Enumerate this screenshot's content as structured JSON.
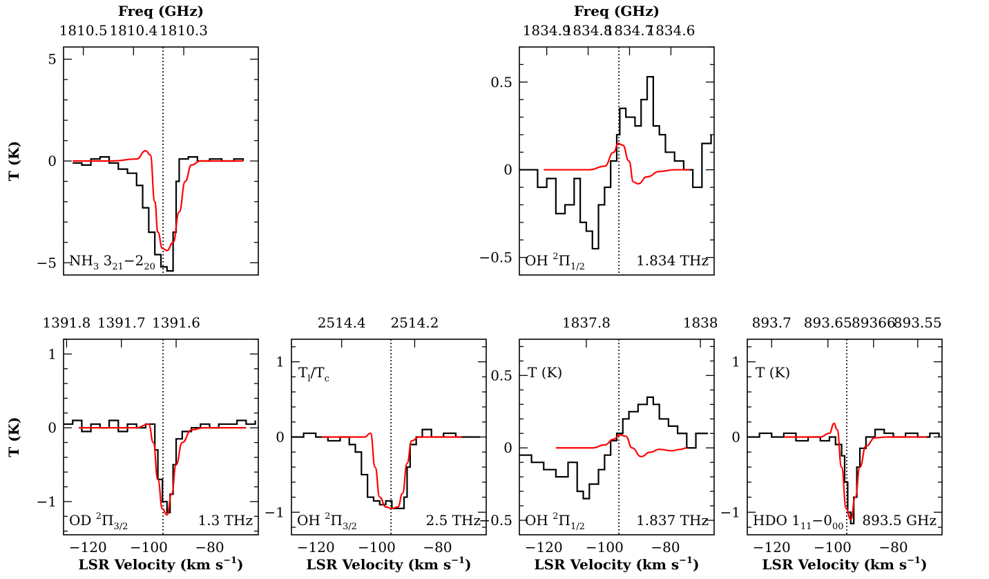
{
  "chart_data": [
    {
      "id": "nh3",
      "type": "line",
      "xlim": [
        -128,
        -64
      ],
      "ylim": [
        -5.6,
        5.6
      ],
      "xticks": [
        -120,
        -100,
        -80
      ],
      "xtick_labels": [
        "",
        "",
        ""
      ],
      "yticks": [
        -5,
        0,
        5
      ],
      "ytick_labels": [
        "−5",
        "0",
        "5"
      ],
      "ylabel": "T (K)",
      "xlabel": "",
      "top_axis": {
        "title": "Freq (GHz)",
        "ticks": [
          {
            "v": -121.5,
            "label": "1810.5"
          },
          {
            "v": -105,
            "label": "1810.4"
          },
          {
            "v": -88.5,
            "label": "1810.3"
          }
        ]
      },
      "vline": -95.3,
      "annotations": {
        "species": "NH",
        "species_sub": "3",
        "rest": " 3",
        "rest_sub": "21",
        "rest2": "−2",
        "rest2_sub": "20",
        "freq": ""
      },
      "observed": [
        [
          -125,
          -0.1
        ],
        [
          -122,
          -0.2
        ],
        [
          -119,
          0.1
        ],
        [
          -116,
          0.2
        ],
        [
          -113,
          -0.1
        ],
        [
          -110,
          -0.4
        ],
        [
          -107,
          -0.6
        ],
        [
          -104,
          -1.2
        ],
        [
          -102,
          -2.3
        ],
        [
          -100,
          -3.5
        ],
        [
          -98,
          -4.6
        ],
        [
          -96,
          -5.2
        ],
        [
          -94,
          -5.4
        ],
        [
          -92,
          -3.5
        ],
        [
          -91,
          -1.0
        ],
        [
          -90,
          0.1
        ],
        [
          -87,
          0.2
        ],
        [
          -84,
          0.0
        ],
        [
          -80,
          0.1
        ],
        [
          -76,
          0.0
        ],
        [
          -72,
          0.1
        ],
        [
          -69,
          0.0
        ]
      ],
      "model": [
        [
          -125,
          0
        ],
        [
          -112,
          0.0
        ],
        [
          -104,
          0.1
        ],
        [
          -101,
          0.5
        ],
        [
          -99.5,
          0.3
        ],
        [
          -98,
          -2.0
        ],
        [
          -97,
          -3.5
        ],
        [
          -95.5,
          -4.3
        ],
        [
          -94,
          -4.4
        ],
        [
          -92,
          -4.0
        ],
        [
          -90,
          -2.5
        ],
        [
          -88,
          -1.0
        ],
        [
          -86,
          -0.2
        ],
        [
          -83,
          0
        ],
        [
          -69,
          0
        ]
      ]
    },
    {
      "id": "oh1834",
      "type": "line",
      "xlim": [
        -128,
        -64
      ],
      "ylim": [
        -0.6,
        0.7
      ],
      "xticks": [
        -120,
        -100,
        -80
      ],
      "xtick_labels": [
        "",
        "",
        ""
      ],
      "yticks": [
        -0.5,
        0,
        0.5
      ],
      "ytick_labels": [
        "−0.5",
        "0",
        "0.5"
      ],
      "ylabel": "",
      "xlabel": "",
      "top_axis": {
        "title": "Freq (GHz)",
        "ticks": [
          {
            "v": -119,
            "label": "1834.9"
          },
          {
            "v": -105.4,
            "label": "1834.8"
          },
          {
            "v": -91.8,
            "label": "1834.7"
          },
          {
            "v": -78.2,
            "label": "1834.6"
          }
        ]
      },
      "vline": -95.3,
      "annotations": {
        "species": "OH ",
        "sup": "2",
        "rest": "Π",
        "rest_sub": "1/2",
        "freq": "1.834 THz"
      },
      "observed": [
        [
          -128,
          0.0
        ],
        [
          -125,
          0.0
        ],
        [
          -122,
          -0.1
        ],
        [
          -119,
          -0.05
        ],
        [
          -116,
          -0.25
        ],
        [
          -113,
          -0.2
        ],
        [
          -110,
          -0.05
        ],
        [
          -108,
          -0.3
        ],
        [
          -106,
          -0.35
        ],
        [
          -104,
          -0.45
        ],
        [
          -102,
          -0.2
        ],
        [
          -100,
          -0.1
        ],
        [
          -98,
          0.05
        ],
        [
          -96,
          0.2
        ],
        [
          -95,
          0.35
        ],
        [
          -93,
          0.3
        ],
        [
          -90,
          0.25
        ],
        [
          -88,
          0.4
        ],
        [
          -86,
          0.53
        ],
        [
          -84,
          0.25
        ],
        [
          -82,
          0.2
        ],
        [
          -80,
          0.1
        ],
        [
          -77,
          0.05
        ],
        [
          -74,
          0.0
        ],
        [
          -71,
          -0.1
        ],
        [
          -68,
          0.15
        ],
        [
          -65,
          0.2
        ]
      ],
      "model": [
        [
          -120,
          0
        ],
        [
          -105,
          0.0
        ],
        [
          -100,
          0.02
        ],
        [
          -97,
          0.1
        ],
        [
          -95.5,
          0.15
        ],
        [
          -94,
          0.14
        ],
        [
          -92,
          0.05
        ],
        [
          -90.5,
          -0.07
        ],
        [
          -89,
          -0.08
        ],
        [
          -86,
          -0.04
        ],
        [
          -82,
          -0.01
        ],
        [
          -77,
          0
        ],
        [
          -72,
          0
        ]
      ]
    },
    {
      "id": "od",
      "type": "line",
      "xlim": [
        -128,
        -64
      ],
      "ylim": [
        -1.45,
        1.2
      ],
      "xticks": [
        -120,
        -100,
        -80
      ],
      "xtick_labels": [
        "−120",
        "−100",
        "−80"
      ],
      "yticks": [
        -1,
        0,
        1
      ],
      "ytick_labels": [
        "−1",
        "0",
        "1"
      ],
      "ylabel": "T (K)",
      "xlabel": "LSR Velocity (km s−1)",
      "top_axis": {
        "title": "",
        "ticks": [
          {
            "v": -127,
            "label": "1391.8"
          },
          {
            "v": -109,
            "label": "1391.7"
          },
          {
            "v": -91,
            "label": "1391.6"
          }
        ]
      },
      "vline": -95.3,
      "annotations": {
        "species": "OD ",
        "sup": "2",
        "rest": "Π",
        "rest_sub": "3/2",
        "freq": "1.3 THz"
      },
      "observed": [
        [
          -128,
          0.05
        ],
        [
          -125,
          0.1
        ],
        [
          -122,
          -0.05
        ],
        [
          -119,
          0.05
        ],
        [
          -116,
          0.0
        ],
        [
          -113,
          0.1
        ],
        [
          -110,
          -0.05
        ],
        [
          -107,
          0.05
        ],
        [
          -104,
          0.0
        ],
        [
          -101,
          0.05
        ],
        [
          -99,
          0.05
        ],
        [
          -98,
          -0.3
        ],
        [
          -97,
          -0.7
        ],
        [
          -95.5,
          -1.0
        ],
        [
          -94,
          -1.15
        ],
        [
          -93,
          -0.9
        ],
        [
          -92,
          -0.5
        ],
        [
          -91,
          -0.15
        ],
        [
          -89,
          -0.05
        ],
        [
          -86,
          0.0
        ],
        [
          -83,
          0.05
        ],
        [
          -80,
          0.0
        ],
        [
          -77,
          0.05
        ],
        [
          -74,
          0.05
        ],
        [
          -71,
          0.1
        ],
        [
          -68,
          0.05
        ],
        [
          -65,
          0.1
        ]
      ],
      "model": [
        [
          -123,
          0
        ],
        [
          -104,
          0
        ],
        [
          -100,
          0.05
        ],
        [
          -98.5,
          -0.2
        ],
        [
          -97,
          -0.7
        ],
        [
          -95.5,
          -1.1
        ],
        [
          -94,
          -1.18
        ],
        [
          -92.5,
          -0.9
        ],
        [
          -91,
          -0.5
        ],
        [
          -89,
          -0.2
        ],
        [
          -86,
          -0.03
        ],
        [
          -82,
          0
        ],
        [
          -68,
          0
        ]
      ]
    },
    {
      "id": "oh25",
      "type": "line",
      "xlim": [
        -128,
        -64
      ],
      "ylim": [
        -1.3,
        1.3
      ],
      "xticks": [
        -120,
        -100,
        -80
      ],
      "xtick_labels": [
        "−120",
        "−100",
        "−80"
      ],
      "yticks": [
        -1,
        0,
        1
      ],
      "ytick_labels": [
        "−1",
        "0",
        "1"
      ],
      "ylabel": "",
      "xlabel": "LSR Velocity (km s−1)",
      "top_axis": {
        "title": "",
        "ticks": [
          {
            "v": -111.5,
            "label": "2514.4"
          },
          {
            "v": -87.5,
            "label": "2514.2"
          }
        ]
      },
      "vline": -95.3,
      "annotations": {
        "corner": "T",
        "corner_sub1": "l",
        "corner_mid": "/T",
        "corner_sub2": "c",
        "species": "OH ",
        "sup": "2",
        "rest": "Π",
        "rest_sub": "3/2",
        "freq": "2.5 THz"
      },
      "observed": [
        [
          -128,
          0.0
        ],
        [
          -124,
          0.05
        ],
        [
          -120,
          0.0
        ],
        [
          -116,
          -0.05
        ],
        [
          -112,
          0.0
        ],
        [
          -109,
          -0.1
        ],
        [
          -107,
          -0.2
        ],
        [
          -105,
          -0.5
        ],
        [
          -103,
          -0.8
        ],
        [
          -101,
          -0.85
        ],
        [
          -99,
          -0.9
        ],
        [
          -97,
          -0.85
        ],
        [
          -95,
          -0.95
        ],
        [
          -93,
          -0.95
        ],
        [
          -91,
          -0.8
        ],
        [
          -90,
          -0.4
        ],
        [
          -89,
          -0.1
        ],
        [
          -87,
          0.0
        ],
        [
          -85,
          0.1
        ],
        [
          -82,
          0.0
        ],
        [
          -78,
          0.05
        ],
        [
          -74,
          0.0
        ],
        [
          -70,
          0.0
        ],
        [
          -66,
          0.0
        ]
      ],
      "model": [
        [
          -118,
          0
        ],
        [
          -104,
          0
        ],
        [
          -102,
          0.05
        ],
        [
          -100.5,
          -0.4
        ],
        [
          -99,
          -0.8
        ],
        [
          -97,
          -0.93
        ],
        [
          -95,
          -0.95
        ],
        [
          -93,
          -0.93
        ],
        [
          -91.5,
          -0.75
        ],
        [
          -90,
          -0.35
        ],
        [
          -88.5,
          -0.05
        ],
        [
          -86,
          0
        ],
        [
          -72,
          0
        ]
      ]
    },
    {
      "id": "oh1837",
      "type": "line",
      "xlim": [
        -128,
        -64
      ],
      "ylim": [
        -0.6,
        0.75
      ],
      "xticks": [
        -120,
        -100,
        -80
      ],
      "xtick_labels": [
        "−120",
        "−100",
        "−80"
      ],
      "yticks": [
        -0.5,
        0,
        0.5
      ],
      "ytick_labels": [
        "−0.5",
        "0",
        "0.5"
      ],
      "ylabel": "",
      "xlabel": "LSR Velocity (km s−1)",
      "top_axis": {
        "title": "",
        "ticks": [
          {
            "v": -106,
            "label": "1837.8"
          },
          {
            "v": -68.5,
            "label": "1838"
          }
        ]
      },
      "vline": -95.3,
      "annotations": {
        "corner": "T (K)",
        "species": "OH ",
        "sup": "2",
        "rest": "Π",
        "rest_sub": "1/2",
        "freq": "1.837 THz"
      },
      "observed": [
        [
          -128,
          -0.05
        ],
        [
          -124,
          -0.1
        ],
        [
          -120,
          -0.15
        ],
        [
          -116,
          -0.2
        ],
        [
          -112,
          -0.1
        ],
        [
          -109,
          -0.3
        ],
        [
          -107,
          -0.35
        ],
        [
          -105,
          -0.25
        ],
        [
          -102,
          -0.15
        ],
        [
          -100,
          -0.05
        ],
        [
          -98,
          0.05
        ],
        [
          -96,
          0.1
        ],
        [
          -94,
          0.2
        ],
        [
          -92,
          0.25
        ],
        [
          -89,
          0.3
        ],
        [
          -86,
          0.35
        ],
        [
          -84,
          0.3
        ],
        [
          -82,
          0.2
        ],
        [
          -79,
          0.15
        ],
        [
          -76,
          0.1
        ],
        [
          -73,
          0.0
        ],
        [
          -70,
          0.1
        ],
        [
          -66,
          0.1
        ]
      ],
      "model": [
        [
          -116,
          0
        ],
        [
          -104,
          0
        ],
        [
          -100,
          0.02
        ],
        [
          -97,
          0.06
        ],
        [
          -95,
          0.09
        ],
        [
          -93,
          0.08
        ],
        [
          -91,
          0.0
        ],
        [
          -88,
          -0.06
        ],
        [
          -85,
          -0.03
        ],
        [
          -82,
          -0.01
        ],
        [
          -78,
          -0.02
        ],
        [
          -75,
          -0.01
        ],
        [
          -73,
          0
        ]
      ]
    },
    {
      "id": "hdo",
      "type": "line",
      "xlim": [
        -128,
        -64
      ],
      "ylim": [
        -1.3,
        1.3
      ],
      "xticks": [
        -120,
        -100,
        -80
      ],
      "xtick_labels": [
        "−120",
        "−100",
        "−80"
      ],
      "yticks": [
        -1,
        0,
        1
      ],
      "ytick_labels": [
        "−1",
        "0",
        "1"
      ],
      "ylabel": "",
      "xlabel": "LSR Velocity (km s−1)",
      "top_axis": {
        "title": "",
        "ticks": [
          {
            "v": -120,
            "label": "893.7"
          },
          {
            "v": -101.5,
            "label": "893.65"
          },
          {
            "v": -86.5,
            "label": "89366"
          },
          {
            "v": -72,
            "label": "893.55"
          }
        ]
      },
      "vline": -95.3,
      "annotations": {
        "corner": "T (K)",
        "species": "HDO 1",
        "rest_sub": "11",
        "rest2": "−0",
        "rest2_sub": "00",
        "freq": "893.5 GHz"
      },
      "observed": [
        [
          -128,
          0.0
        ],
        [
          -124,
          0.05
        ],
        [
          -120,
          0.0
        ],
        [
          -116,
          0.05
        ],
        [
          -112,
          -0.05
        ],
        [
          -108,
          0.0
        ],
        [
          -104,
          -0.05
        ],
        [
          -101,
          0.0
        ],
        [
          -99,
          -0.1
        ],
        [
          -97,
          -0.25
        ],
        [
          -96,
          -0.6
        ],
        [
          -95,
          -1.0
        ],
        [
          -94,
          -1.15
        ],
        [
          -93,
          -0.8
        ],
        [
          -92,
          -0.4
        ],
        [
          -91,
          -0.15
        ],
        [
          -89,
          0.0
        ],
        [
          -86,
          0.1
        ],
        [
          -83,
          0.05
        ],
        [
          -80,
          0.0
        ],
        [
          -76,
          0.05
        ],
        [
          -72,
          0.0
        ],
        [
          -68,
          0.05
        ],
        [
          -65,
          0.0
        ]
      ],
      "model": [
        [
          -116,
          0
        ],
        [
          -104,
          0
        ],
        [
          -101,
          0.05
        ],
        [
          -99.5,
          0.18
        ],
        [
          -98.5,
          0.1
        ],
        [
          -97,
          -0.4
        ],
        [
          -95.5,
          -0.95
        ],
        [
          -94,
          -1.1
        ],
        [
          -92.5,
          -0.8
        ],
        [
          -91,
          -0.4
        ],
        [
          -89,
          -0.12
        ],
        [
          -86,
          -0.01
        ],
        [
          -82,
          0
        ],
        [
          -69,
          0
        ]
      ]
    }
  ]
}
